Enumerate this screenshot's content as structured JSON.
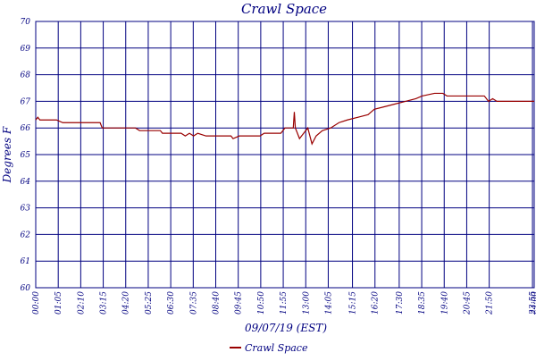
{
  "chart_data": {
    "type": "line",
    "title": "Crawl Space",
    "x_label": "09/07/19 (EST)",
    "y_label": "Degrees F",
    "xlim": [
      0,
      24
    ],
    "ylim": [
      60,
      70
    ],
    "yticks": [
      60,
      61,
      62,
      63,
      64,
      65,
      66,
      67,
      68,
      69,
      70
    ],
    "xticks": [
      {
        "value": 0,
        "label": "00:00"
      },
      {
        "value": 1.0833,
        "label": "01:05"
      },
      {
        "value": 2.1667,
        "label": "02:10"
      },
      {
        "value": 3.25,
        "label": "03:15"
      },
      {
        "value": 4.3333,
        "label": "04:20"
      },
      {
        "value": 5.4167,
        "label": "05:25"
      },
      {
        "value": 6.5,
        "label": "06:30"
      },
      {
        "value": 7.5833,
        "label": "07:35"
      },
      {
        "value": 8.6667,
        "label": "08:40"
      },
      {
        "value": 9.75,
        "label": "09:45"
      },
      {
        "value": 10.8333,
        "label": "10:50"
      },
      {
        "value": 11.9167,
        "label": "11:55"
      },
      {
        "value": 13,
        "label": "13:00"
      },
      {
        "value": 14.0833,
        "label": "14:05"
      },
      {
        "value": 15.25,
        "label": "15:15"
      },
      {
        "value": 16.3333,
        "label": "16:20"
      },
      {
        "value": 17.5,
        "label": "17:30"
      },
      {
        "value": 18.5833,
        "label": "18:35"
      },
      {
        "value": 19.6667,
        "label": "19:40"
      },
      {
        "value": 20.75,
        "label": "20:45"
      },
      {
        "value": 21.8333,
        "label": "21:50"
      },
      {
        "value": 23.9167,
        "label": "23:55"
      },
      {
        "value": 24,
        "label": "24:00"
      }
    ],
    "grid": true,
    "legend": "bottom",
    "series": [
      {
        "name": "Crawl Space",
        "color": "#990000",
        "x": [
          0,
          0.1,
          0.2,
          1.0,
          1.3,
          3.1,
          3.2,
          4.8,
          5.0,
          6.0,
          6.1,
          7.0,
          7.2,
          7.4,
          7.6,
          7.8,
          8.2,
          9.4,
          9.5,
          9.8,
          10.8,
          11.0,
          11.8,
          12.0,
          12.4,
          12.45,
          12.5,
          12.7,
          12.9,
          13.1,
          13.3,
          13.5,
          13.8,
          14.2,
          14.6,
          15.0,
          15.5,
          16.0,
          16.3,
          16.8,
          17.3,
          17.8,
          18.3,
          18.6,
          19.2,
          19.6,
          19.8,
          21.6,
          21.8,
          22.0,
          22.2,
          24
        ],
        "values": [
          66.3,
          66.4,
          66.3,
          66.3,
          66.2,
          66.2,
          66.0,
          66.0,
          65.9,
          65.9,
          65.8,
          65.8,
          65.7,
          65.8,
          65.7,
          65.8,
          65.7,
          65.7,
          65.6,
          65.7,
          65.7,
          65.8,
          65.8,
          66.0,
          66.0,
          66.6,
          66.0,
          65.6,
          65.8,
          66.0,
          65.4,
          65.7,
          65.9,
          66.0,
          66.2,
          66.3,
          66.4,
          66.5,
          66.7,
          66.8,
          66.9,
          67.0,
          67.1,
          67.2,
          67.3,
          67.3,
          67.2,
          67.2,
          67.0,
          67.1,
          67.0,
          67.0
        ]
      }
    ]
  }
}
